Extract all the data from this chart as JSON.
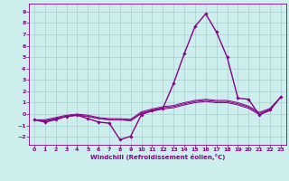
{
  "xlabel": "Windchill (Refroidissement éolien,°C)",
  "xlim": [
    -0.5,
    23.5
  ],
  "ylim": [
    -2.7,
    9.7
  ],
  "xticks": [
    0,
    1,
    2,
    3,
    4,
    5,
    6,
    7,
    8,
    9,
    10,
    11,
    12,
    13,
    14,
    15,
    16,
    17,
    18,
    19,
    20,
    21,
    22,
    23
  ],
  "yticks": [
    -2,
    -1,
    0,
    1,
    2,
    3,
    4,
    5,
    6,
    7,
    8,
    9
  ],
  "bg_color": "#cceeed",
  "line_color": "#880088",
  "grid_color": "#aacccc",
  "lines": [
    {
      "x": [
        0,
        1,
        2,
        3,
        4,
        5,
        6,
        7,
        8,
        9,
        10,
        11,
        12,
        13,
        14,
        15,
        16,
        17,
        18,
        19,
        20,
        21,
        22,
        23
      ],
      "y": [
        -0.5,
        -0.7,
        -0.5,
        -0.2,
        -0.1,
        -0.4,
        -0.7,
        -0.8,
        -2.25,
        -1.95,
        -0.05,
        0.3,
        0.5,
        2.7,
        5.3,
        7.7,
        8.8,
        7.2,
        5.0,
        1.4,
        1.3,
        -0.1,
        0.4,
        1.5
      ],
      "marker": true,
      "lw": 1.0
    },
    {
      "x": [
        0,
        1,
        2,
        3,
        4,
        5,
        6,
        7,
        8,
        9,
        10,
        11,
        12,
        13,
        14,
        15,
        16,
        17,
        18,
        19,
        20,
        21,
        22,
        23
      ],
      "y": [
        -0.5,
        -0.6,
        -0.4,
        -0.2,
        -0.1,
        -0.2,
        -0.4,
        -0.5,
        -0.5,
        -0.6,
        0.05,
        0.25,
        0.45,
        0.55,
        0.8,
        1.0,
        1.1,
        1.0,
        1.0,
        0.8,
        0.5,
        -0.05,
        0.3,
        1.5
      ],
      "marker": false,
      "lw": 0.7
    },
    {
      "x": [
        0,
        1,
        2,
        3,
        4,
        5,
        6,
        7,
        8,
        9,
        10,
        11,
        12,
        13,
        14,
        15,
        16,
        17,
        18,
        19,
        20,
        21,
        22,
        23
      ],
      "y": [
        -0.5,
        -0.6,
        -0.4,
        -0.2,
        -0.1,
        -0.2,
        -0.4,
        -0.5,
        -0.5,
        -0.55,
        0.1,
        0.35,
        0.55,
        0.65,
        0.9,
        1.1,
        1.2,
        1.1,
        1.1,
        0.9,
        0.6,
        0.05,
        0.4,
        1.5
      ],
      "marker": false,
      "lw": 0.7
    },
    {
      "x": [
        0,
        1,
        2,
        3,
        4,
        5,
        6,
        7,
        8,
        9,
        10,
        11,
        12,
        13,
        14,
        15,
        16,
        17,
        18,
        19,
        20,
        21,
        22,
        23
      ],
      "y": [
        -0.5,
        -0.5,
        -0.3,
        -0.1,
        0.0,
        -0.1,
        -0.3,
        -0.4,
        -0.4,
        -0.45,
        0.2,
        0.45,
        0.65,
        0.75,
        1.0,
        1.2,
        1.3,
        1.2,
        1.2,
        1.0,
        0.7,
        0.15,
        0.5,
        1.5
      ],
      "marker": false,
      "lw": 0.7
    }
  ]
}
